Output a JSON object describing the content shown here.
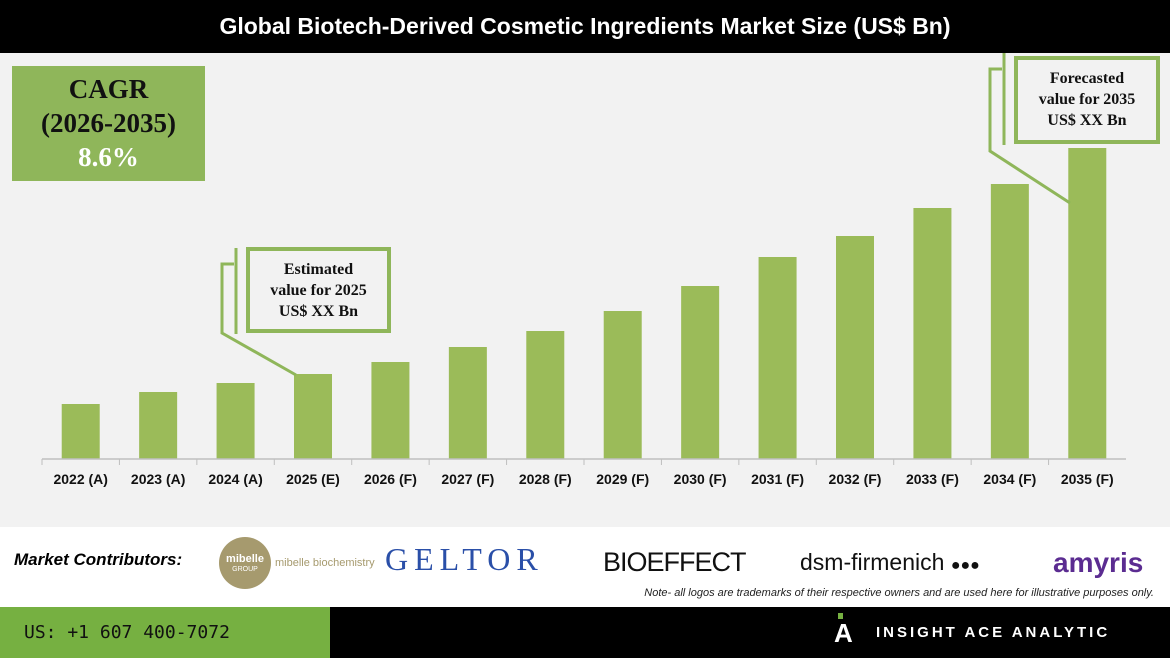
{
  "title": "Global Biotech-Derived Cosmetic Ingredients Market Size (US$ Bn)",
  "cagr": {
    "label": "CAGR",
    "period": "(2026-2035)",
    "value": "8.6%"
  },
  "callouts": {
    "estimated": [
      "Estimated",
      "value for 2025",
      "US$ XX Bn"
    ],
    "forecasted": [
      "Forecasted",
      "value for 2035",
      "US$ XX Bn"
    ]
  },
  "chart_data": {
    "type": "bar",
    "title": "Global Biotech-Derived Cosmetic Ingredients Market Size (US$ Bn)",
    "xlabel": "",
    "ylabel": "",
    "note": "No y-axis shown; values are relative bar heights",
    "categories": [
      "2022 (A)",
      "2023 (A)",
      "2024 (A)",
      "2025 (E)",
      "2026 (F)",
      "2027 (F)",
      "2028 (F)",
      "2029 (F)",
      "2030 (F)",
      "2031 (F)",
      "2032 (F)",
      "2033 (F)",
      "2034 (F)",
      "2035 (F)"
    ],
    "values": [
      55,
      67,
      76,
      85,
      97,
      112,
      128,
      148,
      173,
      202,
      223,
      251,
      275,
      311
    ],
    "ylim": [
      0,
      311
    ],
    "grid": false,
    "bar_color": "#9bbb59"
  },
  "contributors": {
    "label": "Market Contributors:",
    "logos": [
      "mibelle biochemistry",
      "GELTOR",
      "BIOEFFECT",
      "dsm-firmenich",
      "amyris"
    ],
    "mibelle_sub": "GROUP",
    "note": "Note- all logos are trademarks of their respective owners and are used here for illustrative purposes only."
  },
  "footer": {
    "phone": "US: +1 607 400-7072",
    "brand": "INSIGHT ACE ANALYTIC"
  }
}
